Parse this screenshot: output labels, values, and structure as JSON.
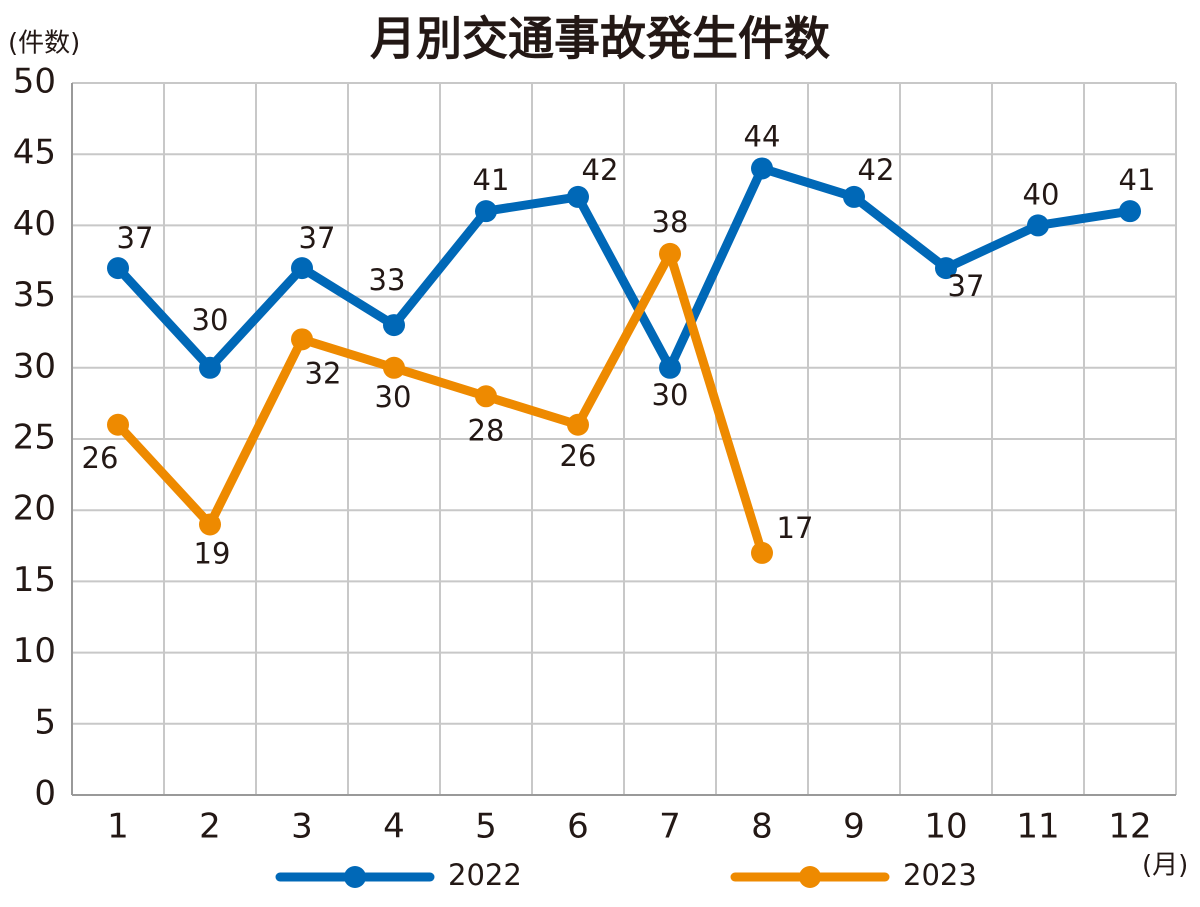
{
  "chart_data": {
    "type": "line",
    "title": "月別交通事故発生件数",
    "y_label": "(件数)",
    "x_label": "(月)",
    "categories": [
      "1",
      "2",
      "3",
      "4",
      "5",
      "6",
      "7",
      "8",
      "9",
      "10",
      "11",
      "12"
    ],
    "series": [
      {
        "name": "2022",
        "color": "#0068b7",
        "values": [
          37,
          30,
          37,
          33,
          41,
          42,
          30,
          44,
          42,
          37,
          40,
          41
        ]
      },
      {
        "name": "2023",
        "color": "#ee8a00",
        "values": [
          26,
          19,
          32,
          30,
          28,
          26,
          38,
          17,
          null,
          null,
          null,
          null
        ]
      }
    ],
    "ylim": [
      0,
      50
    ],
    "yticks": [
      0,
      5,
      10,
      15,
      20,
      25,
      30,
      35,
      40,
      45,
      50
    ],
    "grid": true,
    "legend": "bottom"
  }
}
